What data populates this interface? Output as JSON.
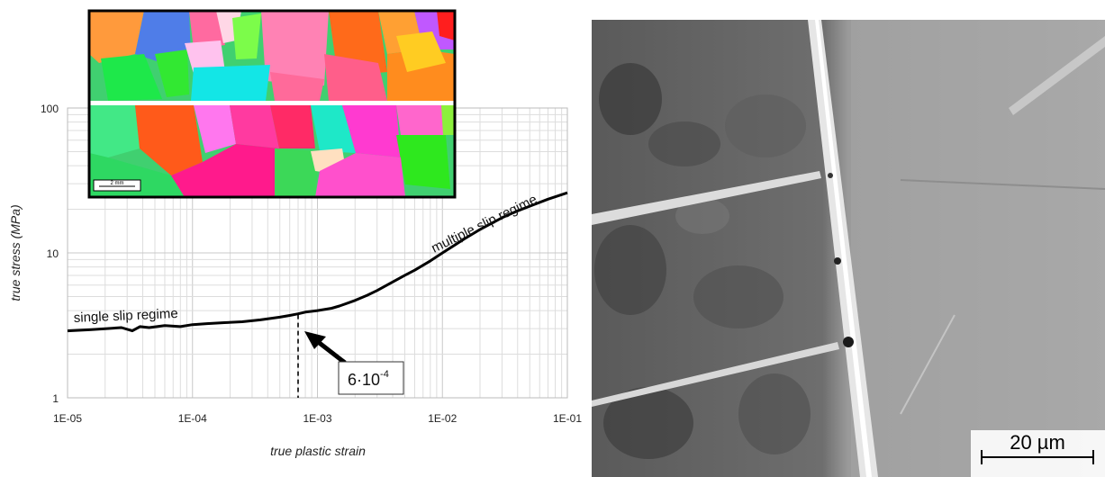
{
  "chart_data": {
    "type": "line",
    "xscale": "log",
    "yscale": "log",
    "xlabel": "true plastic strain",
    "ylabel": "true stress (MPa)",
    "xlim": [
      1e-05,
      0.1
    ],
    "ylim": [
      1,
      100
    ],
    "x_ticks": [
      "1E-05",
      "1E-04",
      "1E-03",
      "1E-02",
      "1E-01"
    ],
    "y_ticks": [
      "1",
      "10",
      "100"
    ],
    "grid": true,
    "series": [
      {
        "x": [
          1e-05,
          1.5e-05,
          2e-05,
          2.7e-05,
          3.3e-05,
          3.8e-05,
          4.5e-05,
          6e-05,
          8e-05,
          0.0001,
          0.00013,
          0.00018,
          0.00025,
          0.00035,
          0.0005,
          0.0006,
          0.0007,
          0.0008,
          0.001,
          0.0013,
          0.0015,
          0.002,
          0.0025,
          0.003,
          0.004,
          0.005,
          0.006,
          0.008,
          0.01,
          0.015,
          0.02,
          0.03,
          0.04,
          0.05,
          0.07,
          0.1
        ],
        "y": [
          2.9,
          2.95,
          3.0,
          3.05,
          2.9,
          3.1,
          3.05,
          3.15,
          3.1,
          3.2,
          3.25,
          3.3,
          3.35,
          3.45,
          3.6,
          3.7,
          3.8,
          3.9,
          4.0,
          4.15,
          4.3,
          4.7,
          5.1,
          5.5,
          6.3,
          7.0,
          7.6,
          8.8,
          10.0,
          12.5,
          14.5,
          17.5,
          19.5,
          21.0,
          23.5,
          26.0
        ]
      }
    ],
    "annotations": {
      "single_slip": "single slip regime",
      "multiple_slip": "multiple slip regime",
      "transition_base": "6·10",
      "transition_exp": "-4",
      "transition_x": 0.0007
    }
  },
  "inset": {
    "scale_bar_label": "2 mm"
  },
  "micrograph": {
    "scale_bar_label": "20 µm"
  }
}
